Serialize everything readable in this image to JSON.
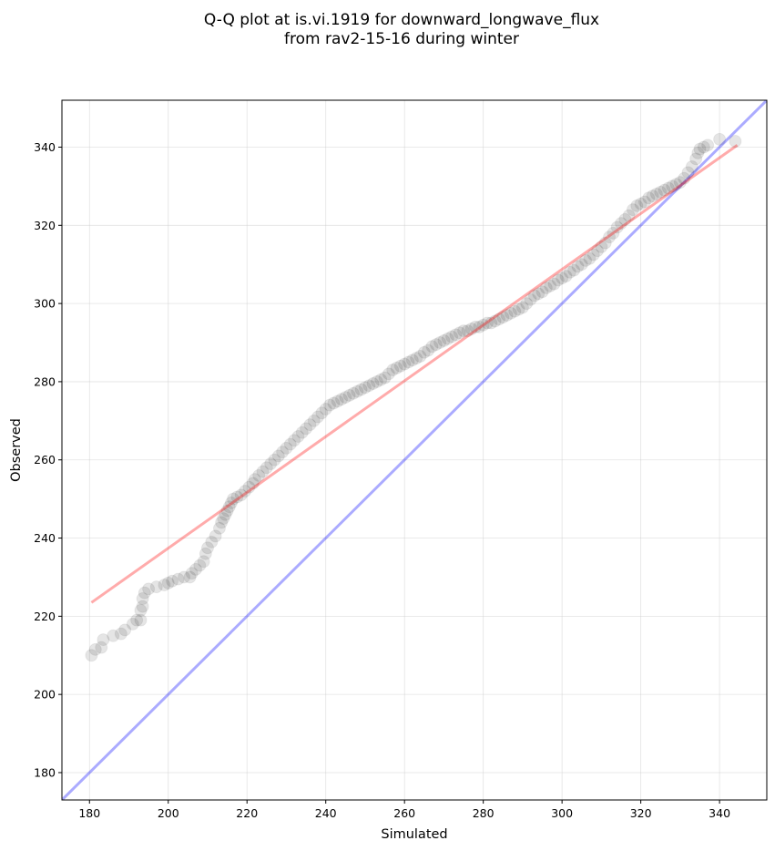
{
  "chart_data": {
    "type": "scatter",
    "title_lines": [
      "Q-Q plot at is.vi.1919 for downward_longwave_flux",
      "from rav2-15-16 during winter"
    ],
    "xlabel": "Simulated",
    "ylabel": "Observed",
    "xlim": [
      173,
      352
    ],
    "ylim": [
      173,
      352
    ],
    "x_ticks": [
      180,
      200,
      220,
      240,
      260,
      280,
      300,
      320,
      340
    ],
    "y_ticks": [
      180,
      200,
      220,
      240,
      260,
      280,
      300,
      320,
      340
    ],
    "grid": true,
    "colors": {
      "points": "#000000",
      "fit_line": "#ff0000",
      "identity_line": "#0000ff",
      "grid": "#cccccc"
    },
    "points": [
      [
        180.5,
        210
      ],
      [
        181.5,
        211.5
      ],
      [
        183,
        212
      ],
      [
        183.5,
        214
      ],
      [
        186,
        215
      ],
      [
        188,
        215.5
      ],
      [
        189,
        216.5
      ],
      [
        191,
        218
      ],
      [
        192,
        219
      ],
      [
        193,
        219
      ],
      [
        193,
        221.5
      ],
      [
        193.5,
        222.5
      ],
      [
        193.5,
        224.5
      ],
      [
        194,
        226
      ],
      [
        195,
        227
      ],
      [
        197,
        227.5
      ],
      [
        199,
        228
      ],
      [
        200,
        228.5
      ],
      [
        201,
        229
      ],
      [
        202.5,
        229.5
      ],
      [
        204,
        230
      ],
      [
        205.5,
        230
      ],
      [
        206,
        231
      ],
      [
        207,
        232
      ],
      [
        208,
        233
      ],
      [
        209,
        234
      ],
      [
        209.5,
        236
      ],
      [
        210,
        237.5
      ],
      [
        211,
        239
      ],
      [
        212,
        240.5
      ],
      [
        213,
        242.5
      ],
      [
        213.5,
        244
      ],
      [
        214,
        245
      ],
      [
        214.5,
        246
      ],
      [
        215,
        247
      ],
      [
        215.5,
        248
      ],
      [
        216,
        249
      ],
      [
        216.5,
        250
      ],
      [
        217.5,
        250.5
      ],
      [
        218.5,
        251
      ],
      [
        219.5,
        252
      ],
      [
        220.5,
        253
      ],
      [
        221.5,
        254
      ],
      [
        222,
        255
      ],
      [
        223,
        256
      ],
      [
        224,
        257
      ],
      [
        225,
        258
      ],
      [
        226,
        259
      ],
      [
        227,
        260
      ],
      [
        228,
        261
      ],
      [
        229,
        262
      ],
      [
        230,
        263
      ],
      [
        231,
        264
      ],
      [
        232,
        265
      ],
      [
        233,
        266
      ],
      [
        234,
        267
      ],
      [
        235,
        268
      ],
      [
        236,
        269
      ],
      [
        237,
        270
      ],
      [
        238,
        271
      ],
      [
        239,
        272
      ],
      [
        240,
        273
      ],
      [
        241,
        274
      ],
      [
        242,
        274.5
      ],
      [
        243,
        275
      ],
      [
        244,
        275.5
      ],
      [
        245,
        276
      ],
      [
        246,
        276.5
      ],
      [
        247,
        277
      ],
      [
        248,
        277.5
      ],
      [
        249,
        278
      ],
      [
        250,
        278.5
      ],
      [
        251,
        279
      ],
      [
        252,
        279.5
      ],
      [
        253,
        280
      ],
      [
        254,
        280.5
      ],
      [
        255,
        281
      ],
      [
        256,
        282
      ],
      [
        257,
        283
      ],
      [
        258,
        283.5
      ],
      [
        259,
        284
      ],
      [
        260,
        284.5
      ],
      [
        261,
        285
      ],
      [
        262,
        285.5
      ],
      [
        263,
        286
      ],
      [
        264,
        286.5
      ],
      [
        265,
        287.5
      ],
      [
        266,
        288
      ],
      [
        267,
        289
      ],
      [
        268,
        289.5
      ],
      [
        269,
        290
      ],
      [
        270,
        290.5
      ],
      [
        271,
        291
      ],
      [
        272,
        291.5
      ],
      [
        273,
        292
      ],
      [
        274,
        292.5
      ],
      [
        275,
        293
      ],
      [
        276,
        293
      ],
      [
        277,
        293.5
      ],
      [
        278,
        294
      ],
      [
        279,
        294
      ],
      [
        280,
        294.5
      ],
      [
        281,
        295
      ],
      [
        282,
        295
      ],
      [
        283,
        295.5
      ],
      [
        284,
        296
      ],
      [
        285,
        296.5
      ],
      [
        286,
        297
      ],
      [
        287,
        297.5
      ],
      [
        288,
        298
      ],
      [
        289,
        298.5
      ],
      [
        290,
        299
      ],
      [
        291,
        300
      ],
      [
        292,
        301
      ],
      [
        293,
        302
      ],
      [
        294,
        302.5
      ],
      [
        295,
        303
      ],
      [
        296,
        304
      ],
      [
        297,
        304.5
      ],
      [
        298,
        305
      ],
      [
        299,
        306
      ],
      [
        300,
        306.5
      ],
      [
        301,
        307
      ],
      [
        302,
        308
      ],
      [
        303,
        308.5
      ],
      [
        304,
        309.5
      ],
      [
        305,
        310
      ],
      [
        306,
        311
      ],
      [
        307,
        311.5
      ],
      [
        308,
        312.5
      ],
      [
        309,
        313.5
      ],
      [
        310,
        314.5
      ],
      [
        311,
        315.5
      ],
      [
        312,
        317
      ],
      [
        313,
        318
      ],
      [
        314,
        319.5
      ],
      [
        315,
        320.5
      ],
      [
        316,
        321.5
      ],
      [
        317,
        322.5
      ],
      [
        318,
        324
      ],
      [
        319,
        325
      ],
      [
        320,
        325.5
      ],
      [
        321,
        326
      ],
      [
        322,
        327
      ],
      [
        323,
        327.5
      ],
      [
        324,
        328
      ],
      [
        325,
        328.5
      ],
      [
        326,
        329
      ],
      [
        327,
        329.5
      ],
      [
        328,
        330
      ],
      [
        329,
        330.5
      ],
      [
        330,
        331
      ],
      [
        331,
        332
      ],
      [
        332,
        333.5
      ],
      [
        333,
        335
      ],
      [
        334,
        337
      ],
      [
        334.5,
        338.5
      ],
      [
        335,
        339.5
      ],
      [
        336,
        340
      ],
      [
        337,
        340.5
      ],
      [
        340,
        342
      ],
      [
        344,
        341.5
      ]
    ],
    "fit_line": [
      [
        180.5,
        223.5
      ],
      [
        344.5,
        340.5
      ]
    ],
    "identity_line": [
      [
        173,
        173
      ],
      [
        352,
        352
      ]
    ]
  }
}
